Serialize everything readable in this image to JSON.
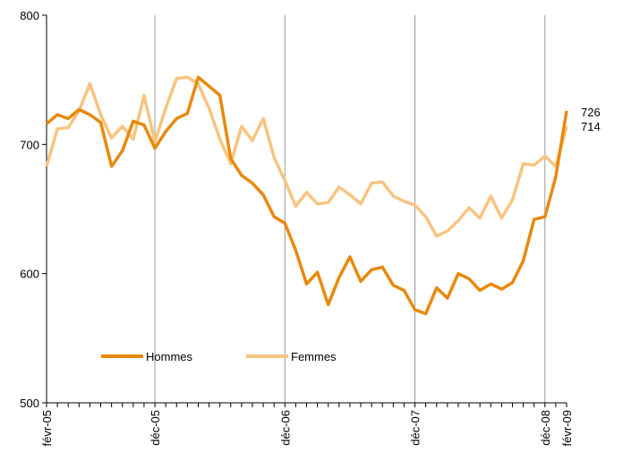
{
  "chart_data": {
    "type": "line",
    "categories": [
      "févr-05",
      null,
      null,
      null,
      null,
      null,
      null,
      null,
      null,
      null,
      "déc-05",
      null,
      null,
      null,
      null,
      null,
      null,
      null,
      null,
      null,
      null,
      null,
      "déc-06",
      null,
      null,
      null,
      null,
      null,
      null,
      null,
      null,
      null,
      null,
      null,
      "déc-07",
      null,
      null,
      null,
      null,
      null,
      null,
      null,
      null,
      null,
      null,
      null,
      "déc-08",
      null,
      "févr-09"
    ],
    "series": [
      {
        "name": "Hommes",
        "color": "#e8890c",
        "values": [
          716,
          723,
          720,
          727,
          723,
          717,
          683,
          695,
          718,
          715,
          697,
          710,
          720,
          724,
          752,
          745,
          738,
          689,
          676,
          670,
          661,
          644,
          639,
          618,
          592,
          601,
          576,
          597,
          613,
          594,
          603,
          605,
          591,
          587,
          572,
          569,
          589,
          581,
          600,
          596,
          587,
          592,
          588,
          593,
          610,
          642,
          644,
          675,
          726
        ]
      },
      {
        "name": "Femmes",
        "color": "#f8c480",
        "values": [
          683,
          712,
          713,
          726,
          747,
          723,
          705,
          714,
          704,
          738,
          702,
          728,
          751,
          752,
          747,
          728,
          704,
          685,
          714,
          703,
          720,
          690,
          672,
          652,
          663,
          654,
          655,
          667,
          661,
          654,
          670,
          671,
          660,
          656,
          653,
          644,
          629,
          633,
          641,
          651,
          643,
          660,
          643,
          657,
          685,
          684,
          691,
          683,
          714
        ]
      }
    ],
    "ylim": [
      500,
      800
    ],
    "yticks": [
      500,
      600,
      700,
      800
    ],
    "grid": "x",
    "legend": "lower left"
  }
}
